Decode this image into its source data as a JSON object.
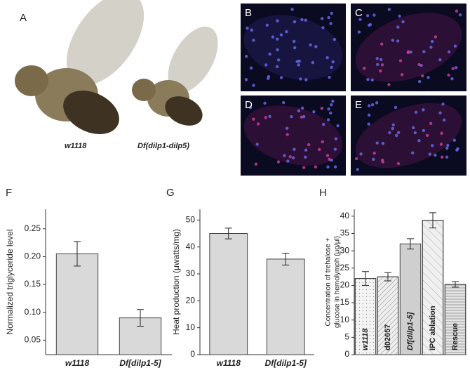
{
  "panels": {
    "A": {
      "label": "A",
      "captions": [
        "w1118",
        "Df(dilp1-dilp5)"
      ]
    },
    "images": [
      "B",
      "C",
      "D",
      "E"
    ]
  },
  "chart_data": [
    {
      "type": "bar",
      "panel": "F",
      "ylabel": "Normalized triglyceride level",
      "categories": [
        "w1118",
        "Df[dilp1-5]"
      ],
      "values": [
        0.205,
        0.09
      ],
      "errors": [
        0.022,
        0.015
      ],
      "color": "#d9d9d9",
      "ylim": [
        0.024,
        0.285
      ],
      "yticks": [
        {
          "value": 0.05,
          "label": "0.05"
        },
        {
          "value": 0.1,
          "label": "0.10"
        },
        {
          "value": 0.15,
          "label": "0.15"
        },
        {
          "value": 0.2,
          "label": "0.20"
        },
        {
          "value": 0.25,
          "label": "0.25"
        }
      ]
    },
    {
      "type": "bar",
      "panel": "G",
      "ylabel": "Heat production (μwatts/mg)",
      "categories": [
        "w1118",
        "Df[dilp1-5]"
      ],
      "values": [
        45,
        35.5
      ],
      "errors": [
        2,
        2.2
      ],
      "color": "#d9d9d9",
      "ylim": [
        0,
        54
      ],
      "yticks": [
        0,
        10,
        20,
        30,
        40,
        50
      ]
    },
    {
      "type": "bar",
      "panel": "H",
      "ylabel": [
        "Concentration of trehalose +",
        "glucose in hemolymph (μg/μl)"
      ],
      "categories": [
        "w1118",
        "d02657",
        "Df[dilp1-5]",
        "IPC ablation",
        "Rescue"
      ],
      "values": [
        22,
        22.5,
        32,
        38.8,
        20.3
      ],
      "errors": [
        2,
        1.2,
        1.5,
        2.2,
        0.8
      ],
      "colors": [
        "#f4f4f4",
        "#eeeeee",
        "#cfcfcf",
        "#f0f0f0",
        "#e4e4e4"
      ],
      "patterns": [
        "dots",
        "diag",
        "none",
        "diag-wide",
        "hlines"
      ],
      "ylim": [
        0,
        42
      ],
      "yticks": [
        0,
        5,
        10,
        15,
        20,
        25,
        30,
        35,
        40
      ]
    }
  ]
}
